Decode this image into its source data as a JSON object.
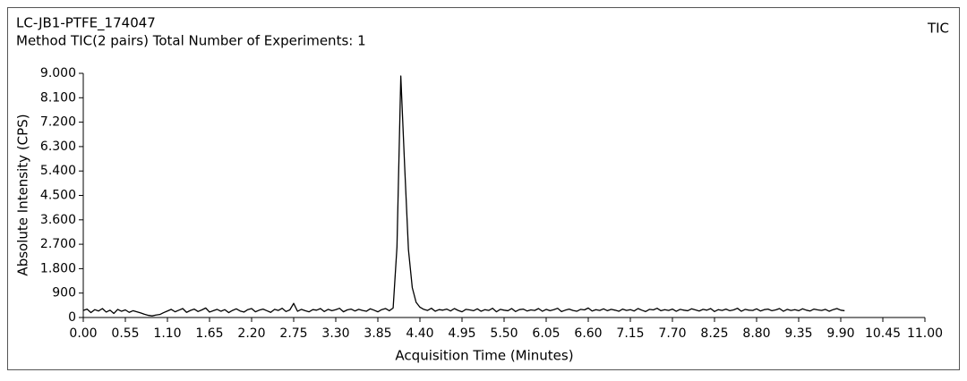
{
  "chart_data": {
    "type": "line",
    "title": "LC-JB1-PTFE_174047",
    "subtitle": "Method TIC(2 pairs) Total Number of Experiments: 1",
    "trace_label": "TIC",
    "xlabel": "Acquisition Time (Minutes)",
    "ylabel": "Absolute Intensity (CPS)",
    "color": "#000000",
    "xlim": [
      0,
      11
    ],
    "ylim": [
      0,
      9000
    ],
    "xticks": [
      {
        "value": 0,
        "label": "0.00"
      },
      0.55,
      {
        "value": 1.1,
        "label": "1.10"
      },
      1.65,
      {
        "value": 2.2,
        "label": "2.20"
      },
      2.75,
      {
        "value": 3.3,
        "label": "3.30"
      },
      3.85,
      {
        "value": 4.4,
        "label": "4.40"
      },
      4.95,
      {
        "value": 5.5,
        "label": "5.50"
      },
      6.05,
      {
        "value": 6.6,
        "label": "6.60"
      },
      7.15,
      {
        "value": 7.7,
        "label": "7.70"
      },
      8.25,
      {
        "value": 8.8,
        "label": "8.80"
      },
      9.35,
      {
        "value": 9.9,
        "label": "9.90"
      },
      10.45,
      {
        "value": 11,
        "label": "11.00"
      }
    ],
    "yticks": [
      0,
      900,
      {
        "value": 1800,
        "label": "1.800"
      },
      {
        "value": 2700,
        "label": "2.700"
      },
      {
        "value": 3600,
        "label": "3.600"
      },
      {
        "value": 4500,
        "label": "4.500"
      },
      {
        "value": 5400,
        "label": "5.400"
      },
      {
        "value": 6300,
        "label": "6.300"
      },
      {
        "value": 7200,
        "label": "7.200"
      },
      {
        "value": 8100,
        "label": "8.100"
      },
      {
        "value": 9000,
        "label": "9.000"
      }
    ],
    "x": [
      0,
      0.05,
      0.1,
      0.15,
      0.2,
      0.25,
      0.3,
      0.35,
      0.4,
      0.45,
      0.5,
      0.55,
      0.6,
      0.65,
      0.7,
      0.75,
      0.8,
      0.85,
      0.9,
      0.95,
      1,
      1.05,
      1.1,
      1.15,
      1.2,
      1.25,
      1.3,
      1.35,
      1.4,
      1.45,
      1.5,
      1.55,
      1.6,
      1.65,
      1.7,
      1.75,
      1.8,
      1.85,
      1.9,
      1.95,
      2,
      2.05,
      2.1,
      2.15,
      2.2,
      2.25,
      2.3,
      2.35,
      2.4,
      2.45,
      2.5,
      2.55,
      2.6,
      2.65,
      2.7,
      2.75,
      2.8,
      2.85,
      2.9,
      2.95,
      3,
      3.05,
      3.1,
      3.15,
      3.2,
      3.25,
      3.3,
      3.35,
      3.4,
      3.45,
      3.5,
      3.55,
      3.6,
      3.65,
      3.7,
      3.75,
      3.8,
      3.85,
      3.9,
      3.95,
      4,
      4.05,
      4.1,
      4.15,
      4.2,
      4.25,
      4.3,
      4.35,
      4.4,
      4.45,
      4.5,
      4.55,
      4.6,
      4.65,
      4.7,
      4.75,
      4.8,
      4.85,
      4.9,
      4.95,
      5,
      5.05,
      5.1,
      5.15,
      5.2,
      5.25,
      5.3,
      5.35,
      5.4,
      5.45,
      5.5,
      5.55,
      5.6,
      5.65,
      5.7,
      5.75,
      5.8,
      5.85,
      5.9,
      5.95,
      6,
      6.05,
      6.1,
      6.15,
      6.2,
      6.25,
      6.3,
      6.35,
      6.4,
      6.45,
      6.5,
      6.55,
      6.6,
      6.65,
      6.7,
      6.75,
      6.8,
      6.85,
      6.9,
      6.95,
      7,
      7.05,
      7.1,
      7.15,
      7.2,
      7.25,
      7.3,
      7.35,
      7.4,
      7.45,
      7.5,
      7.55,
      7.6,
      7.65,
      7.7,
      7.75,
      7.8,
      7.85,
      7.9,
      7.95,
      8,
      8.05,
      8.1,
      8.15,
      8.2,
      8.25,
      8.3,
      8.35,
      8.4,
      8.45,
      8.5,
      8.55,
      8.6,
      8.65,
      8.7,
      8.75,
      8.8,
      8.85,
      8.9,
      8.95,
      9,
      9.05,
      9.1,
      9.15,
      9.2,
      9.25,
      9.3,
      9.35,
      9.4,
      9.45,
      9.5,
      9.55,
      9.6,
      9.65,
      9.7,
      9.75,
      9.8,
      9.85,
      9.9,
      9.95
    ],
    "values": [
      260,
      310,
      180,
      290,
      240,
      330,
      200,
      270,
      150,
      300,
      230,
      280,
      190,
      250,
      210,
      170,
      120,
      80,
      60,
      90,
      110,
      180,
      240,
      300,
      210,
      270,
      330,
      190,
      260,
      310,
      220,
      280,
      350,
      200,
      250,
      300,
      230,
      290,
      180,
      260,
      320,
      240,
      200,
      290,
      330,
      210,
      270,
      310,
      250,
      190,
      300,
      260,
      340,
      220,
      280,
      520,
      230,
      300,
      250,
      210,
      290,
      270,
      330,
      220,
      300,
      250,
      290,
      340,
      210,
      280,
      310,
      240,
      300,
      260,
      230,
      320,
      270,
      210,
      290,
      330,
      250,
      350,
      2600,
      8900,
      5600,
      2500,
      1100,
      560,
      380,
      300,
      260,
      340,
      230,
      290,
      270,
      310,
      240,
      330,
      260,
      210,
      300,
      280,
      250,
      320,
      230,
      290,
      260,
      340,
      210,
      300,
      270,
      250,
      330,
      220,
      290,
      310,
      240,
      280,
      260,
      330,
      230,
      300,
      250,
      290,
      340,
      220,
      270,
      310,
      260,
      230,
      300,
      280,
      350,
      240,
      290,
      260,
      320,
      250,
      300,
      270,
      230,
      310,
      260,
      290,
      240,
      330,
      270,
      220,
      300,
      280,
      340,
      250,
      290,
      260,
      310,
      230,
      300,
      270,
      250,
      320,
      280,
      240,
      300,
      270,
      330,
      220,
      290,
      260,
      310,
      250,
      280,
      340,
      230,
      300,
      270,
      260,
      320,
      240,
      290,
      310,
      250,
      280,
      330,
      230,
      300,
      260,
      290,
      250,
      320,
      270,
      240,
      310,
      280,
      260,
      300,
      230,
      290,
      330,
      270,
      250
    ]
  }
}
